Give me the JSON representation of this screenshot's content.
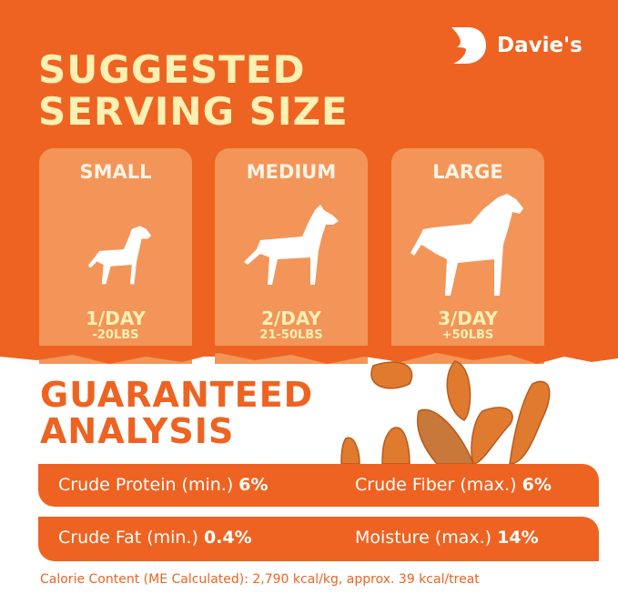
{
  "brand": {
    "name": "Davie's"
  },
  "serving": {
    "title_line1": "SUGGESTED",
    "title_line2": "SERVING SIZE",
    "cards": [
      {
        "size": "SMALL",
        "frequency": "1/DAY",
        "weight": "-20LBS",
        "icon": "small-dog-icon"
      },
      {
        "size": "MEDIUM",
        "frequency": "2/DAY",
        "weight": "21-50LBS",
        "icon": "medium-dog-icon"
      },
      {
        "size": "LARGE",
        "frequency": "3/DAY",
        "weight": "+50LBS",
        "icon": "large-dog-icon"
      }
    ]
  },
  "analysis": {
    "title_line1": "GUARANTEED",
    "title_line2": "ANALYSIS",
    "rows": [
      [
        {
          "label": "Crude Protein (min.)",
          "value": "6%"
        },
        {
          "label": "Crude Fiber (max.)",
          "value": "6%"
        }
      ],
      [
        {
          "label": "Crude Fat (min.)",
          "value": "0.4%"
        },
        {
          "label": "Moisture (max.)",
          "value": "14%"
        }
      ]
    ],
    "calorie_note": "Calorie Content (ME Calculated): 2,790 kcal/kg, approx. 39 kcal/treat"
  },
  "colors": {
    "brand_orange": "#ee6321",
    "card": "#f39559",
    "cream": "#fdf0b3"
  }
}
